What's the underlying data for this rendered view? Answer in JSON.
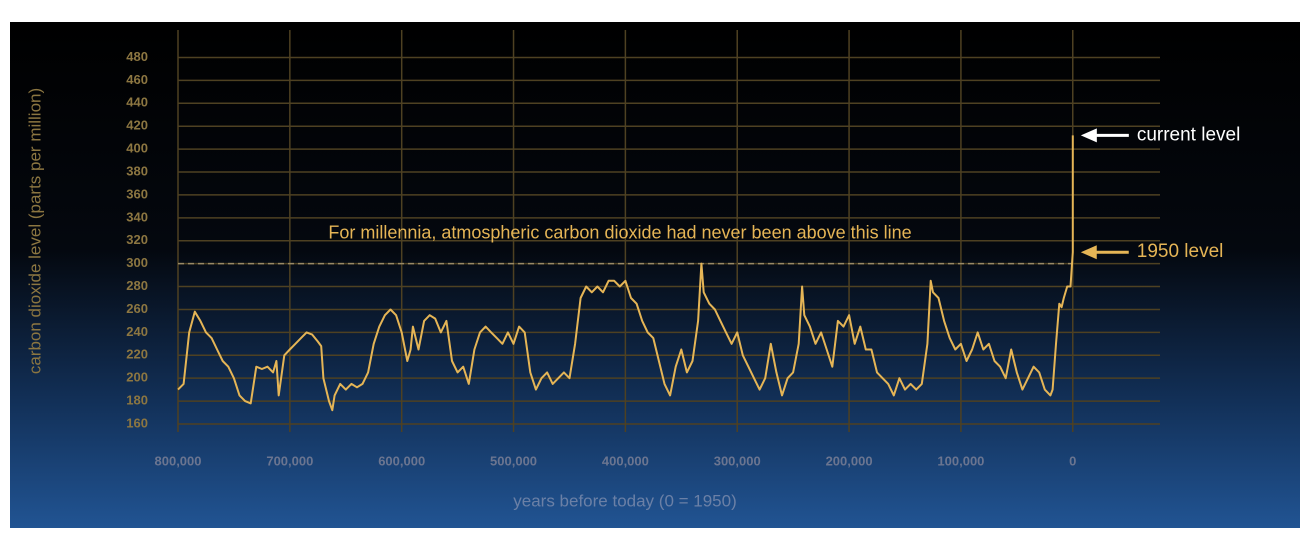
{
  "chart_data": {
    "type": "line",
    "ylabel": "carbon dioxide level (parts per million)",
    "xlabel": "years before today (0 = 1950)",
    "x": [
      800000,
      795000,
      790000,
      785000,
      780000,
      775000,
      770000,
      765000,
      760000,
      755000,
      750000,
      745000,
      740000,
      735000,
      730000,
      725000,
      720000,
      715000,
      712000,
      710000,
      705000,
      700000,
      695000,
      690000,
      685000,
      680000,
      675000,
      672000,
      670000,
      665000,
      662000,
      660000,
      655000,
      650000,
      645000,
      640000,
      635000,
      630000,
      625000,
      620000,
      615000,
      610000,
      605000,
      600000,
      595000,
      592000,
      590000,
      585000,
      580000,
      575000,
      570000,
      565000,
      560000,
      555000,
      550000,
      545000,
      540000,
      535000,
      530000,
      525000,
      520000,
      515000,
      510000,
      505000,
      500000,
      495000,
      490000,
      485000,
      480000,
      475000,
      470000,
      465000,
      460000,
      455000,
      450000,
      445000,
      440000,
      435000,
      430000,
      425000,
      420000,
      415000,
      410000,
      405000,
      400000,
      395000,
      390000,
      385000,
      380000,
      375000,
      370000,
      365000,
      360000,
      355000,
      350000,
      345000,
      340000,
      335000,
      332000,
      330000,
      325000,
      320000,
      315000,
      310000,
      305000,
      300000,
      295000,
      290000,
      285000,
      280000,
      275000,
      270000,
      265000,
      260000,
      255000,
      250000,
      245000,
      242000,
      240000,
      235000,
      230000,
      225000,
      220000,
      215000,
      210000,
      205000,
      200000,
      195000,
      190000,
      185000,
      180000,
      175000,
      170000,
      165000,
      160000,
      155000,
      150000,
      145000,
      140000,
      135000,
      130000,
      127000,
      125000,
      120000,
      115000,
      110000,
      105000,
      100000,
      95000,
      90000,
      85000,
      80000,
      75000,
      70000,
      65000,
      60000,
      55000,
      50000,
      45000,
      40000,
      35000,
      30000,
      25000,
      20000,
      18000,
      15000,
      12000,
      10000,
      8000,
      5000,
      2000,
      0,
      -70
    ],
    "series": [
      {
        "color": "#e5b556",
        "values": [
          190,
          195,
          240,
          258,
          250,
          240,
          235,
          225,
          215,
          210,
          200,
          185,
          180,
          178,
          210,
          208,
          210,
          205,
          215,
          185,
          220,
          225,
          230,
          235,
          240,
          238,
          232,
          228,
          200,
          180,
          172,
          185,
          195,
          190,
          195,
          192,
          195,
          205,
          230,
          245,
          255,
          260,
          255,
          240,
          215,
          225,
          245,
          225,
          250,
          255,
          252,
          240,
          250,
          215,
          205,
          210,
          195,
          225,
          240,
          245,
          240,
          235,
          230,
          240,
          230,
          245,
          240,
          205,
          190,
          200,
          205,
          195,
          200,
          205,
          200,
          230,
          270,
          280,
          275,
          280,
          275,
          285,
          285,
          280,
          285,
          270,
          265,
          250,
          240,
          235,
          215,
          195,
          185,
          210,
          225,
          205,
          215,
          250,
          300,
          275,
          265,
          260,
          250,
          240,
          230,
          240,
          220,
          210,
          200,
          190,
          200,
          230,
          205,
          185,
          200,
          205,
          230,
          280,
          255,
          245,
          230,
          240,
          225,
          210,
          250,
          245,
          255,
          230,
          245,
          225,
          225,
          205,
          200,
          195,
          185,
          200,
          190,
          195,
          190,
          195,
          230,
          285,
          275,
          270,
          250,
          235,
          225,
          230,
          215,
          225,
          240,
          225,
          230,
          215,
          210,
          200,
          225,
          205,
          190,
          200,
          210,
          205,
          190,
          185,
          190,
          230,
          265,
          262,
          270,
          280,
          280,
          310,
          412
        ]
      }
    ],
    "xlim": [
      800000,
      -78000
    ],
    "xticks": [
      {
        "value": 800000,
        "label": "800,000"
      },
      {
        "value": 700000,
        "label": "700,000"
      },
      {
        "value": 600000,
        "label": "600,000"
      },
      {
        "value": 500000,
        "label": "500,000"
      },
      {
        "value": 400000,
        "label": "400,000"
      },
      {
        "value": 300000,
        "label": "300,000"
      },
      {
        "value": 200000,
        "label": "200,000"
      },
      {
        "value": 100000,
        "label": "100,000"
      },
      0
    ],
    "ylim": [
      153,
      504
    ],
    "yticks": [
      160,
      180,
      200,
      220,
      240,
      260,
      280,
      300,
      320,
      340,
      360,
      380,
      400,
      420,
      440,
      460,
      480
    ],
    "grid": true,
    "threshold": 300,
    "threshold_label": "For millennia, atmospheric carbon dioxide had never been above this line",
    "annotations": [
      "current level",
      "1950 level"
    ]
  }
}
